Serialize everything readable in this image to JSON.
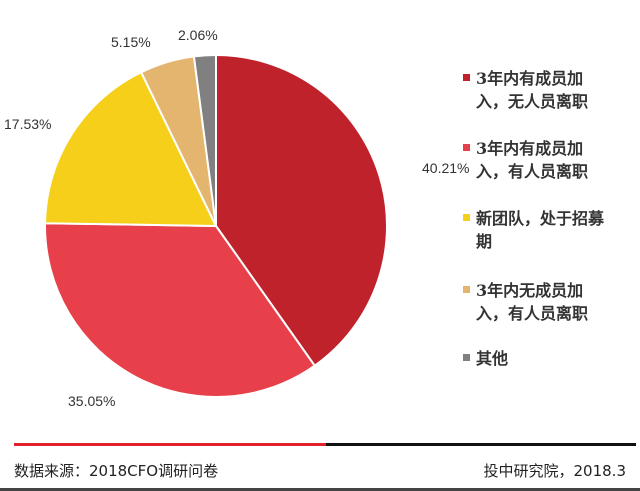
{
  "chart_data": {
    "type": "pie",
    "categories": [
      "3年内有成员加入，无人员离职",
      "3年内有成员加入，有人员离职",
      "新团队，处于招募期",
      "3年内无成员加入，有人员离职",
      "其他"
    ],
    "values": [
      40.21,
      35.05,
      17.53,
      5.15,
      2.06
    ],
    "data_labels": [
      "40.21%",
      "35.05%",
      "17.53%",
      "5.15%",
      "2.06%"
    ],
    "colors": [
      "#c0222b",
      "#e8404a",
      "#f5cf1a",
      "#e3b56f",
      "#808080"
    ],
    "start": "12 o'clock",
    "direction": "clockwise",
    "legend_position": "right"
  },
  "legend": [
    {
      "line1": "3年内有成员加",
      "line2": "入，无人员离职"
    },
    {
      "line1": "3年内有成员加",
      "line2": "入，有人员离职"
    },
    {
      "line1": "新团队，处于招募",
      "line2": "期"
    },
    {
      "line1": "3年内无成员加",
      "line2": "入，有人员离职"
    },
    {
      "line1": "其他",
      "line2": ""
    }
  ],
  "footer": {
    "source": "数据来源：2018CFO调研问卷",
    "credit": "投中研究院，2018.3",
    "rule_colors": [
      "#e0202a",
      "#111111"
    ]
  }
}
